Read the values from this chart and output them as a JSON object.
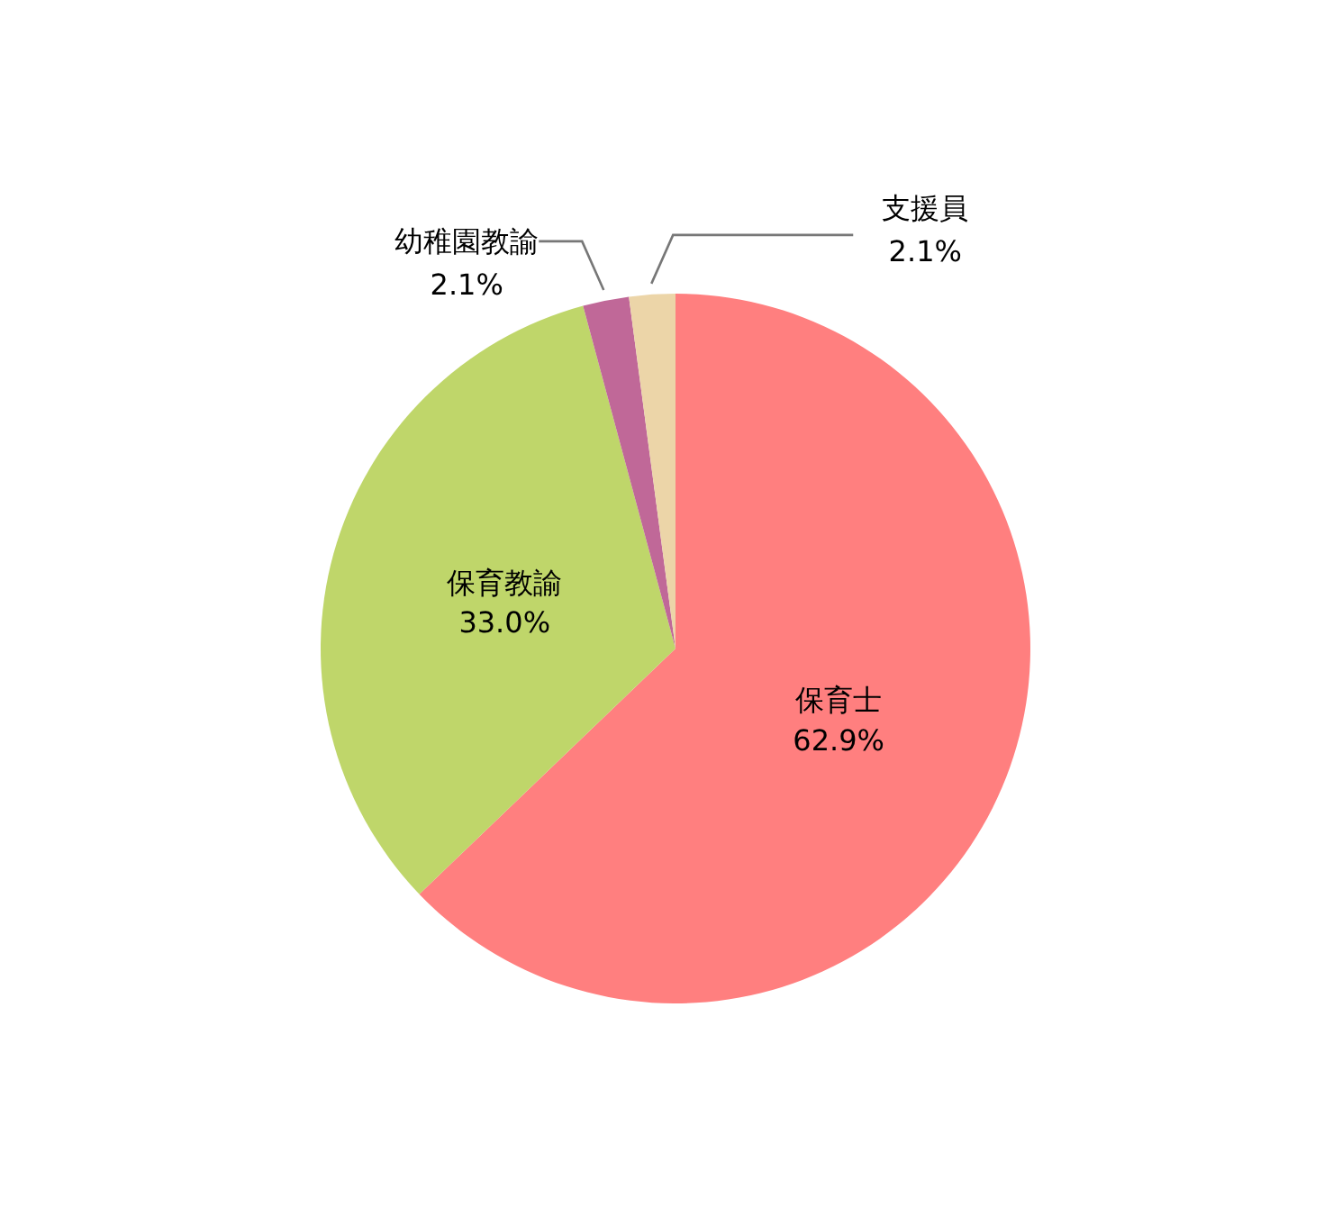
{
  "chart_data": {
    "type": "pie",
    "categories": [
      "保育士",
      "保育教諭",
      "幼稚園教諭",
      "支援員"
    ],
    "values": [
      62.9,
      33.0,
      2.1,
      2.1
    ],
    "value_labels": [
      "62.9%",
      "33.0%",
      "2.1%",
      "2.1%"
    ],
    "colors": [
      "#ff7f7f",
      "#bfd66a",
      "#c06898",
      "#ecd5a8"
    ]
  }
}
